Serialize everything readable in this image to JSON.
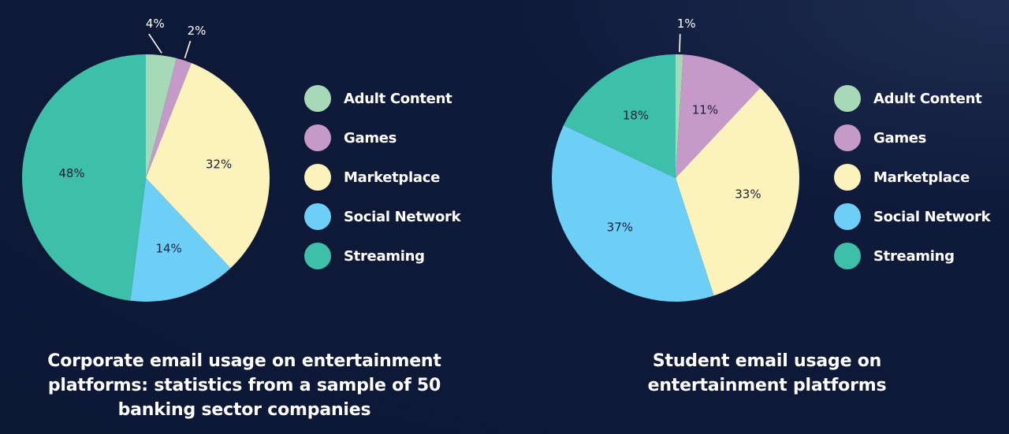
{
  "chart_data": [
    {
      "type": "pie",
      "title": "Corporate email usage on entertainment platforms: statistics from a sample of 50 banking sector companies",
      "labels": [
        "Adult Content",
        "Games",
        "Marketplace",
        "Social Network",
        "Streaming"
      ],
      "values": [
        4,
        2,
        32,
        14,
        48
      ],
      "value_labels": [
        "4%",
        "2%",
        "32%",
        "14%",
        "48%"
      ],
      "colors": [
        "#a7d9b9",
        "#c59ac8",
        "#fbf2bc",
        "#6dcff6",
        "#3ebfaa"
      ],
      "start_angle": "12 o'clock",
      "direction": "clockwise",
      "legend_position": "right"
    },
    {
      "type": "pie",
      "title": "Student email usage on entertainment platforms",
      "labels": [
        "Adult Content",
        "Games",
        "Marketplace",
        "Social Network",
        "Streaming"
      ],
      "values": [
        1,
        11,
        33,
        37,
        18
      ],
      "value_labels": [
        "1%",
        "11%",
        "33%",
        "37%",
        "18%"
      ],
      "colors": [
        "#a7d9b9",
        "#c59ac8",
        "#fbf2bc",
        "#6dcff6",
        "#3ebfaa"
      ],
      "start_angle": "12 o'clock",
      "direction": "clockwise",
      "legend_position": "right"
    }
  ],
  "captions": {
    "left": [
      "Corporate email usage on entertainment",
      "platforms: statistics from a sample of 50",
      "banking sector companies"
    ],
    "right": [
      "Student email usage on",
      "entertainment platforms"
    ]
  }
}
